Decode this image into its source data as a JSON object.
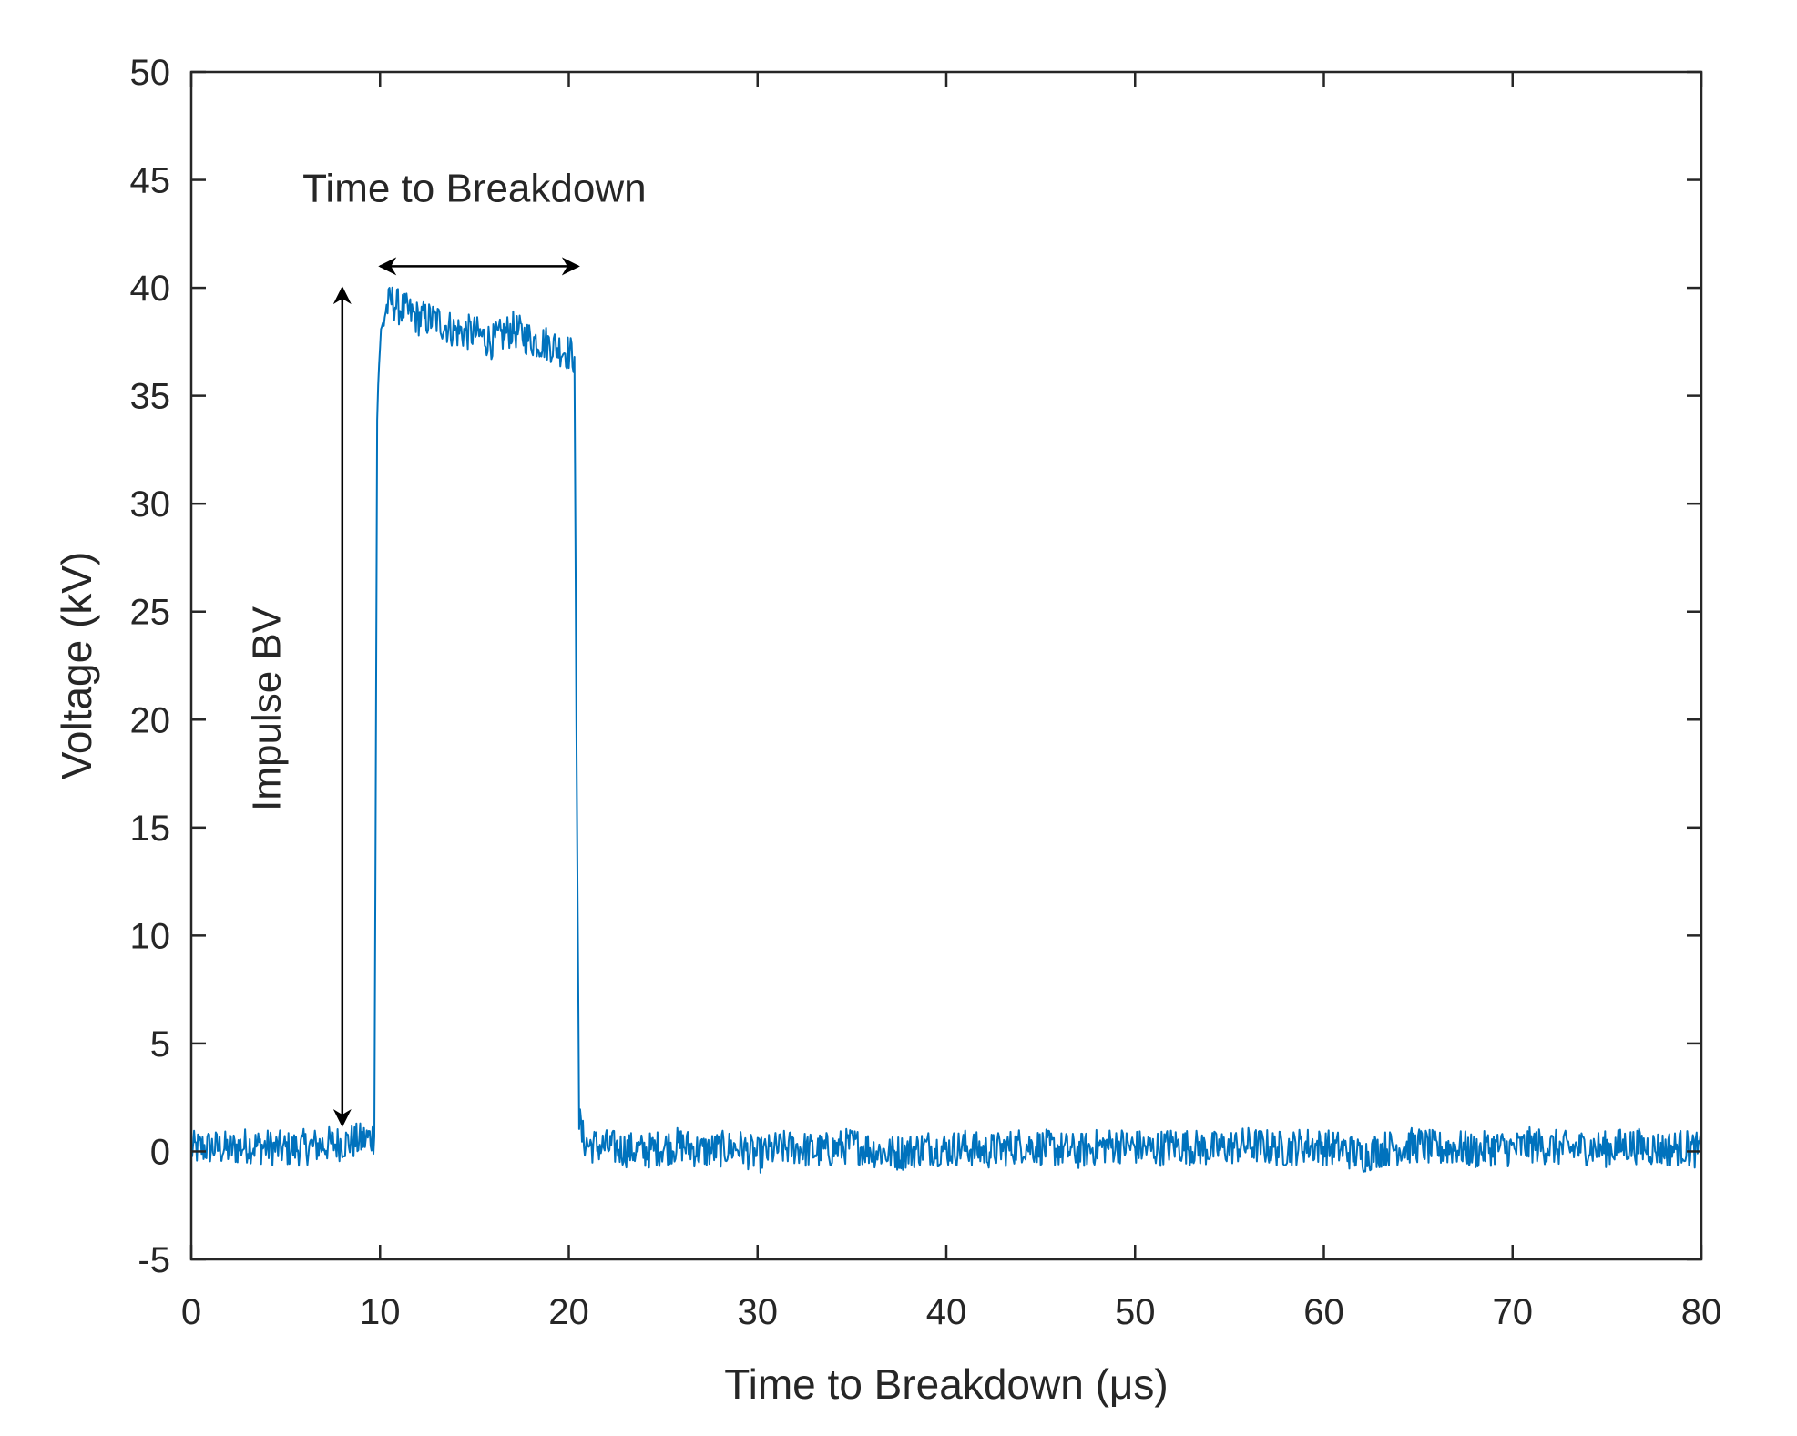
{
  "chart_data": {
    "type": "line",
    "title": "",
    "xlabel": "Time to Breakdown (μs)",
    "ylabel": "Voltage (kV)",
    "xlim": [
      0,
      80
    ],
    "ylim": [
      -5,
      50
    ],
    "xticks": [
      0,
      10,
      20,
      30,
      40,
      50,
      60,
      70,
      80
    ],
    "yticks": [
      -5,
      0,
      5,
      10,
      15,
      20,
      25,
      30,
      35,
      40,
      45,
      50
    ],
    "grid": false,
    "series": [
      {
        "name": "Voltage",
        "color": "#0072BD",
        "x": [
          0,
          1,
          2,
          3,
          4,
          5,
          6,
          7,
          8,
          9,
          9.7,
          9.85,
          10,
          10.3,
          10.6,
          11,
          12,
          13,
          14,
          15,
          16,
          17,
          18,
          19,
          20,
          20.3,
          20.4,
          20.55,
          20.7,
          21,
          22,
          23,
          24,
          25,
          26,
          27,
          28,
          29,
          30,
          31,
          32,
          33,
          34,
          35,
          36,
          37,
          38,
          39,
          40,
          41,
          42,
          43,
          44,
          45,
          46,
          47,
          48,
          49,
          50,
          51,
          52,
          53,
          54,
          55,
          56,
          57,
          58,
          59,
          60,
          61,
          62,
          63,
          64,
          65,
          66,
          67,
          68,
          69,
          70,
          71,
          72,
          73,
          74,
          75,
          76,
          77,
          78,
          79,
          80
        ],
        "y": [
          0.1,
          0.2,
          0.1,
          0.3,
          0.2,
          0.1,
          0.2,
          0.3,
          0.4,
          0.5,
          0.7,
          34.5,
          37.5,
          39.0,
          39.4,
          39.1,
          38.6,
          38.5,
          38.0,
          37.9,
          37.5,
          38.1,
          37.6,
          37.4,
          37.0,
          36.8,
          20.0,
          1.5,
          0.7,
          0.3,
          0.2,
          0.1,
          0.0,
          0.2,
          0.3,
          0.0,
          0.1,
          0.2,
          -0.2,
          0.1,
          0.2,
          0.0,
          0.1,
          0.3,
          0.1,
          -0.1,
          0.0,
          0.2,
          0.1,
          0.2,
          0.0,
          0.1,
          0.3,
          0.2,
          0.1,
          0.0,
          0.2,
          0.3,
          0.2,
          0.1,
          0.3,
          0.2,
          0.1,
          0.2,
          0.3,
          0.2,
          0.1,
          0.3,
          0.2,
          0.1,
          -0.2,
          0.1,
          0.2,
          0.3,
          0.1,
          0.2,
          0.0,
          0.2,
          0.1,
          0.3,
          0.2,
          0.1,
          0.2,
          0.1,
          0.3,
          0.2,
          0.1,
          0.2,
          0.0
        ]
      }
    ],
    "annotations": [
      {
        "text": "Time to Breakdown",
        "arrow": "horizontal double-headed",
        "from": [
          10,
          41
        ],
        "to": [
          20.5,
          41
        ],
        "label_at": [
          15,
          44
        ]
      },
      {
        "text": "Impulse BV",
        "arrow": "vertical double-headed",
        "from": [
          8,
          1.2
        ],
        "to": [
          8,
          40
        ],
        "label_at": [
          4.7,
          20.5
        ]
      }
    ]
  }
}
